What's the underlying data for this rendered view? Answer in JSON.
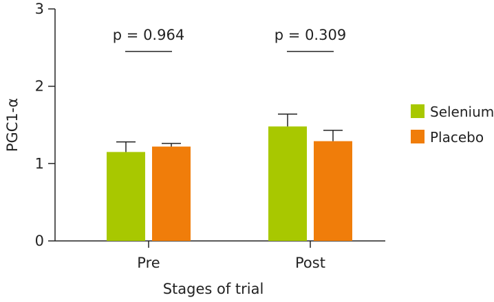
{
  "chart_data": {
    "type": "bar",
    "title": "",
    "xlabel": "Stages of trial",
    "ylabel": "PGC1-α",
    "ylim": [
      0,
      3
    ],
    "yticks": [
      "0",
      "1",
      "2",
      "3"
    ],
    "categories": [
      "Pre",
      "Post"
    ],
    "series": [
      {
        "name": "Selenium",
        "color": "#a8c800",
        "values": [
          1.15,
          1.48
        ],
        "errors": [
          0.13,
          0.16
        ]
      },
      {
        "name": "Placebo",
        "color": "#f07d0a",
        "values": [
          1.22,
          1.29
        ],
        "errors": [
          0.04,
          0.14
        ]
      }
    ],
    "annotations": [
      "p = 0.964",
      "p = 0.309"
    ],
    "legend_position": "right"
  }
}
